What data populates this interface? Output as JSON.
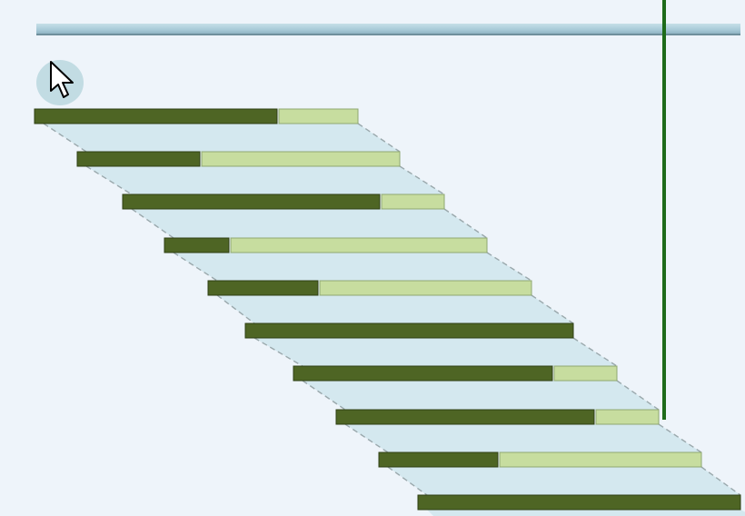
{
  "gantt": {
    "colors": {
      "background": "#eef4fa",
      "band_fill": "#d4e8ef",
      "band_outline": "#9aa8ac",
      "completed": "#4e6524",
      "remaining": "#c7dd9f",
      "summary": "#a9cbd8",
      "today_line": "#1e6b1a"
    },
    "cursor_icon": "pointer-arrow-icon",
    "tasks": [
      {
        "progress": 0.75
      },
      {
        "progress": 0.38
      },
      {
        "progress": 0.8
      },
      {
        "progress": 0.2
      },
      {
        "progress": 0.34
      },
      {
        "progress": 1.0
      },
      {
        "progress": 0.8
      },
      {
        "progress": 0.8
      },
      {
        "progress": 0.37
      },
      {
        "progress": 1.0
      }
    ]
  }
}
